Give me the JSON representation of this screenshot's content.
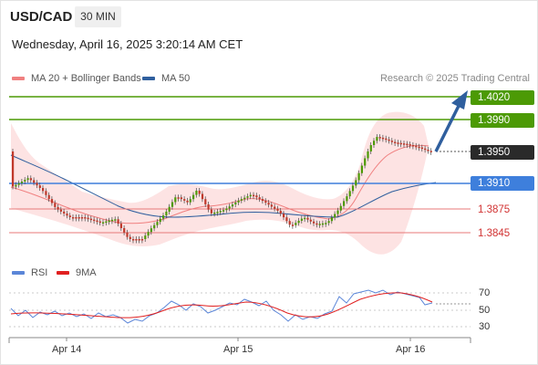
{
  "header": {
    "symbol": "USD/CAD",
    "timeframe": "30 MIN",
    "datetime": "Wednesday, April 16, 2025 3:20:14 AM CET"
  },
  "legend": {
    "ma20_label": "MA 20 + Bollinger Bands",
    "ma50_label": "MA 50",
    "credit": "Research © 2025 Trading Central",
    "rsi_label": "RSI",
    "ma9_label": "9MA"
  },
  "levels": [
    {
      "label": "1.4020",
      "style": "green",
      "color": "#4c9a05"
    },
    {
      "label": "1.3990",
      "style": "green",
      "color": "#4c9a05"
    },
    {
      "label": "1.3950",
      "style": "black",
      "color": "#2a2a2a"
    },
    {
      "label": "1.3910",
      "style": "blue",
      "color": "#3e7fdc"
    },
    {
      "label": "1.3875",
      "style": "plain",
      "color": "#e87878"
    },
    {
      "label": "1.3845",
      "style": "plain",
      "color": "#e87878"
    }
  ],
  "rsi_axis": [
    "70",
    "50",
    "30"
  ],
  "x_axis": [
    "Apr 14",
    "Apr 15",
    "Apr 16"
  ],
  "colors": {
    "bullish": "#4c9a05",
    "bearish": "#c0392b",
    "ma20": "#f08080",
    "ma50": "#2f5f9e",
    "bands": "#fde0e0",
    "rsi": "#5b86d8",
    "ma9": "#e02020",
    "arrow": "#2f5f9e"
  }
}
